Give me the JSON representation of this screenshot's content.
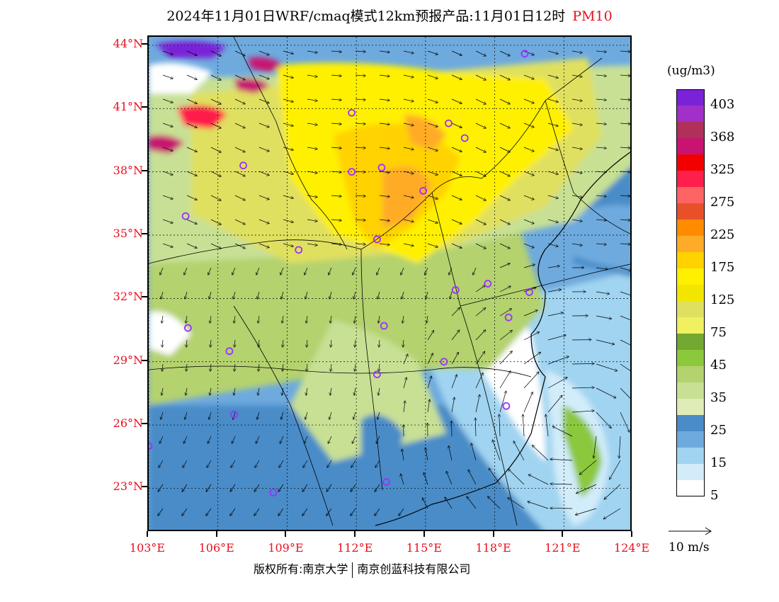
{
  "title": {
    "main": "2024年11月01日WRF/cmaq模式12km预报产品:11月01日12时",
    "variable": "PM10"
  },
  "map": {
    "lat_labels": [
      "44°N",
      "41°N",
      "38°N",
      "35°N",
      "32°N",
      "29°N",
      "26°N",
      "23°N"
    ],
    "lon_labels": [
      "103°E",
      "106°E",
      "109°E",
      "112°E",
      "115°E",
      "118°E",
      "121°E",
      "124°E"
    ],
    "lat_values": [
      44,
      41,
      38,
      35,
      32,
      29,
      26,
      23
    ],
    "lon_values": [
      103,
      106,
      109,
      112,
      115,
      118,
      121,
      124
    ],
    "extent": {
      "lon_min": 103,
      "lon_max": 124,
      "lat_min": 20.9,
      "lat_max": 44.4
    },
    "station_marker_color": "#9b30ff",
    "stations": [
      {
        "lon": 119.3,
        "lat": 43.6
      },
      {
        "lon": 111.8,
        "lat": 40.8
      },
      {
        "lon": 116.0,
        "lat": 40.3
      },
      {
        "lon": 116.7,
        "lat": 39.6
      },
      {
        "lon": 107.1,
        "lat": 38.3
      },
      {
        "lon": 111.8,
        "lat": 38.0
      },
      {
        "lon": 113.1,
        "lat": 38.2
      },
      {
        "lon": 114.9,
        "lat": 37.1
      },
      {
        "lon": 104.6,
        "lat": 35.9
      },
      {
        "lon": 109.5,
        "lat": 34.3
      },
      {
        "lon": 112.9,
        "lat": 34.8
      },
      {
        "lon": 117.7,
        "lat": 32.7
      },
      {
        "lon": 116.3,
        "lat": 32.4
      },
      {
        "lon": 119.5,
        "lat": 32.3
      },
      {
        "lon": 118.6,
        "lat": 31.1
      },
      {
        "lon": 104.7,
        "lat": 30.6
      },
      {
        "lon": 113.2,
        "lat": 30.7
      },
      {
        "lon": 106.5,
        "lat": 29.5
      },
      {
        "lon": 115.8,
        "lat": 29.0
      },
      {
        "lon": 112.9,
        "lat": 28.4
      },
      {
        "lon": 118.5,
        "lat": 26.9
      },
      {
        "lon": 106.7,
        "lat": 26.5
      },
      {
        "lon": 103.0,
        "lat": 25.0
      },
      {
        "lon": 113.3,
        "lat": 23.3
      },
      {
        "lon": 108.4,
        "lat": 22.8
      }
    ]
  },
  "colorbar": {
    "unit": "(ug/m3)",
    "labels": [
      "403",
      "368",
      "325",
      "275",
      "225",
      "175",
      "125",
      "75",
      "45",
      "35",
      "25",
      "15",
      "5"
    ],
    "colors": [
      "#7a22d8",
      "#a030c8",
      "#b0305a",
      "#c81470",
      "#f20000",
      "#ff1f4c",
      "#ff6464",
      "#e8502a",
      "#ff8c00",
      "#ffab28",
      "#ffd200",
      "#fff000",
      "#f2e600",
      "#e0e060",
      "#f0f060",
      "#73a832",
      "#8cc83c",
      "#b4d26e",
      "#c8e094",
      "#e0ecb8",
      "#4a8cc8",
      "#6eaade",
      "#a0d4f0",
      "#d2ecfa",
      "#ffffff"
    ]
  },
  "wind": {
    "reference_label": "10 m/s"
  },
  "footer": {
    "copyright_left": "版权所有:南京大学",
    "copyright_right": "南京创蓝科技有限公司"
  }
}
